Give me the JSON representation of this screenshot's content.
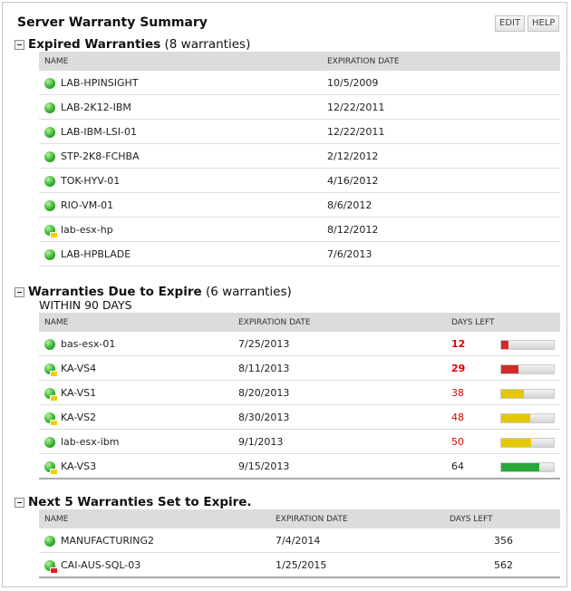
{
  "header": {
    "title": "Server Warranty Summary",
    "buttons": [
      "EDIT",
      "HELP"
    ]
  },
  "sections": [
    {
      "title": "Expired Warranties",
      "count": "(8 warranties)",
      "columns": [
        "NAME",
        "EXPIRATION DATE"
      ],
      "rows": [
        [
          "LAB-HPINSIGHT",
          "10/5/2009"
        ],
        [
          "LAB-2K12-IBM",
          "12/22/2011"
        ],
        [
          "LAB-IBM-LSI-01",
          "12/22/2011"
        ],
        [
          "STP-2K8-FCHBA",
          "2/12/2012"
        ],
        [
          "TOK-HYV-01",
          "4/16/2012"
        ],
        [
          "RIO-VM-01",
          "8/6/2012"
        ],
        [
          "lab-esx-hp",
          "8/12/2012"
        ],
        [
          "LAB-HPBLADE",
          "7/6/2013"
        ]
      ]
    },
    {
      "title": "Warranties Due to Expire",
      "count": "(6 warranties)",
      "subtitle": "WITHIN 90 DAYS",
      "columns": [
        "NAME",
        "EXPIRATION DATE",
        "DAYS LEFT"
      ],
      "rows": [
        [
          "bas-esx-01",
          "7/25/2013",
          12
        ],
        [
          "KA-VS4",
          "8/11/2013",
          29
        ],
        [
          "KA-VS1",
          "8/20/2013",
          38
        ],
        [
          "KA-VS2",
          "8/30/2013",
          48
        ],
        [
          "lab-esx-ibm",
          "9/1/2013",
          50
        ],
        [
          "KA-VS3",
          "9/15/2013",
          64
        ]
      ],
      "bar_colors": [
        "#d42a2a",
        "#d42a2a",
        "#e6c800",
        "#e6c800",
        "#e6c800",
        "#2ba83a"
      ]
    },
    {
      "title": "Next 5 Warranties Set to Expire.",
      "columns": [
        "NAME",
        "EXPIRATION DATE",
        "DAYS LEFT"
      ],
      "rows": [
        [
          "MANUFACTURING2",
          "7/4/2014",
          356
        ],
        [
          "CAI-AUS-SQL-03",
          "1/25/2015",
          562
        ]
      ]
    }
  ]
}
